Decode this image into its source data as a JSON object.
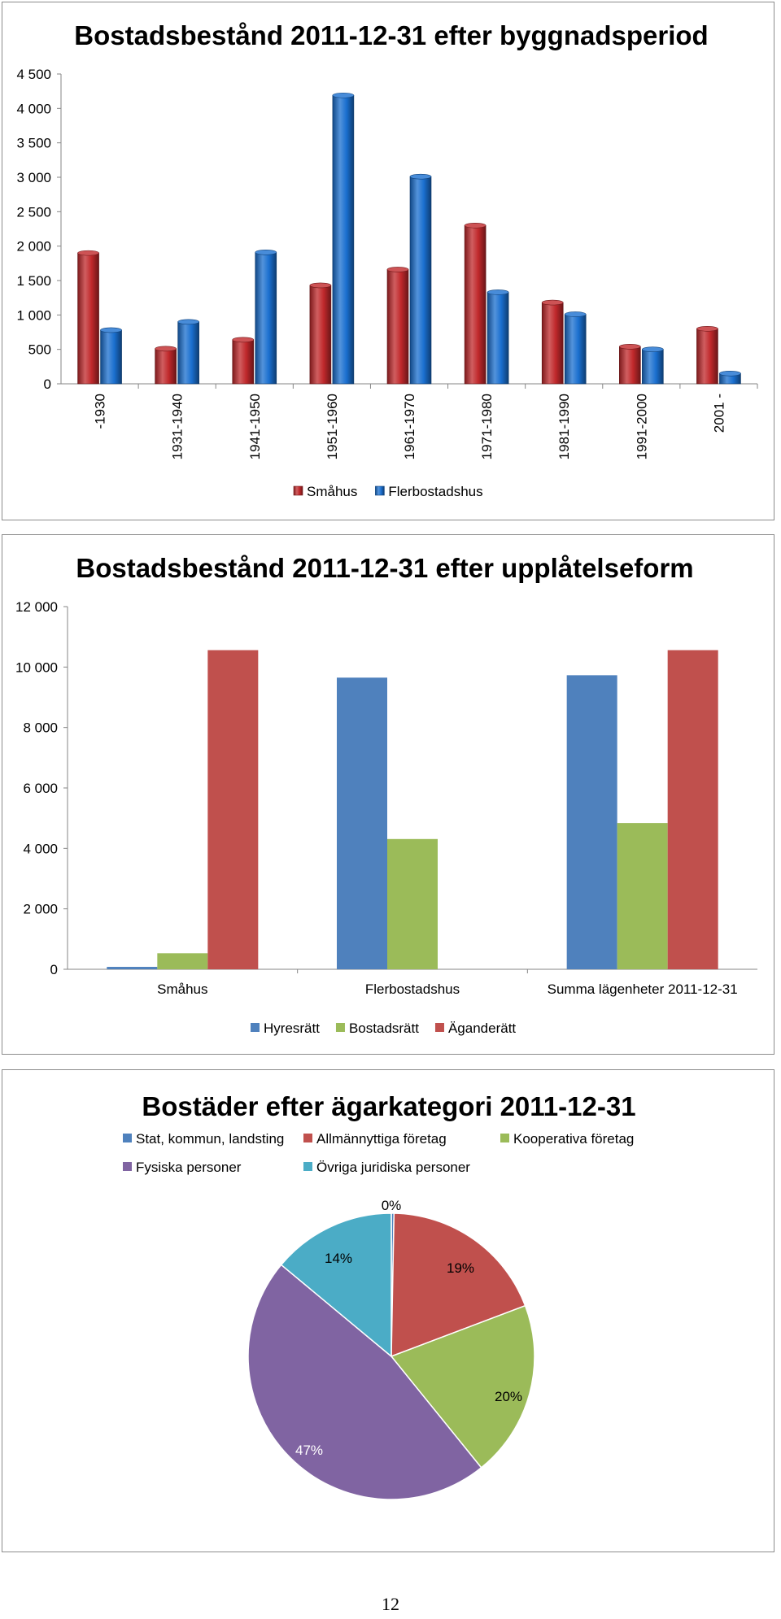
{
  "page_number": "12",
  "chart_data": [
    {
      "type": "bar",
      "title": "Bostadsbestånd 2011-12-31 efter byggnadsperiod",
      "categories": [
        "-1930",
        "1931-1940",
        "1941-1950",
        "1951-1960",
        "1961-1970",
        "1971-1980",
        "1981-1990",
        "1991-2000",
        "2001 -"
      ],
      "series": [
        {
          "name": "Småhus",
          "color": "#c0282b",
          "values": [
            1900,
            510,
            640,
            1430,
            1660,
            2300,
            1180,
            540,
            800
          ]
        },
        {
          "name": "Flerbostadshus",
          "color": "#1a6fcf",
          "values": [
            780,
            900,
            1910,
            4190,
            3010,
            1330,
            1010,
            500,
            150
          ]
        }
      ],
      "yticks": [
        "0",
        "500",
        "1 000",
        "1 500",
        "2 000",
        "2 500",
        "3 000",
        "3 500",
        "4 000",
        "4 500"
      ],
      "ylim": [
        0,
        4500
      ],
      "style": "3d-cylinder",
      "legend": "bottom",
      "grid": false
    },
    {
      "type": "bar",
      "title": "Bostadsbestånd 2011-12-31 efter upplåtelseform",
      "categories": [
        "Småhus",
        "Flerbostadshus",
        "Summa lägenheter 2011-12-31"
      ],
      "series": [
        {
          "name": "Hyresrätt",
          "color": "#4f81bd",
          "values": [
            80,
            9650,
            9730
          ]
        },
        {
          "name": "Bostadsrätt",
          "color": "#9bbb59",
          "values": [
            530,
            4310,
            4840
          ]
        },
        {
          "name": "Äganderätt",
          "color": "#c0504d",
          "values": [
            10560,
            0,
            10560
          ]
        }
      ],
      "yticks": [
        "0",
        "2 000",
        "4 000",
        "6 000",
        "8 000",
        "10 000",
        "12 000"
      ],
      "ylim": [
        0,
        12000
      ],
      "legend": "bottom",
      "grid": false
    },
    {
      "type": "pie",
      "title": "Bostäder efter ägarkategori 2011-12-31",
      "slices": [
        {
          "name": "Stat,  kommun, landsting",
          "color": "#4f81bd",
          "value": 0.3,
          "label": "0%"
        },
        {
          "name": "Allmännyttiga företag",
          "color": "#c0504d",
          "value": 19,
          "label": "19%"
        },
        {
          "name": "Kooperativa företag",
          "color": "#9bbb59",
          "value": 20,
          "label": "20%"
        },
        {
          "name": "Fysiska  personer",
          "color": "#8064a2",
          "value": 47,
          "label": "47%"
        },
        {
          "name": "Övriga  juridiska personer",
          "color": "#4bacc6",
          "value": 14,
          "label": "14%"
        }
      ],
      "legend": "top"
    }
  ]
}
